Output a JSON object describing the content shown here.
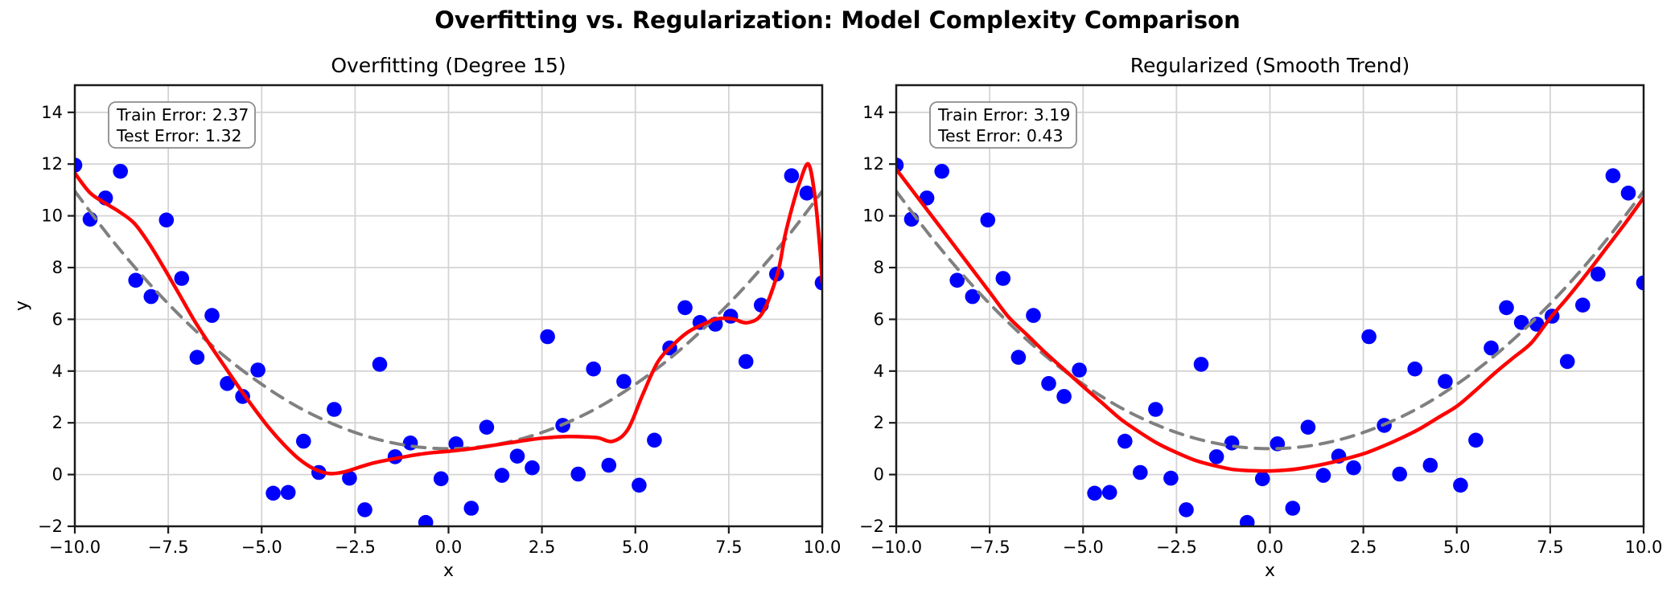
{
  "figure": {
    "suptitle": "Overfitting vs. Regularization: Model Complexity Comparison"
  },
  "colors": {
    "scatter": "#0000ff",
    "fit_line": "#ff0000",
    "true_line": "#808080",
    "grid": "#d4d4d4",
    "spine": "#1a1a1a",
    "tick": "#1a1a1a",
    "text": "#000000",
    "annotation_bg": "#ffffff",
    "annotation_border": "#8c8c8c"
  },
  "chart_data": [
    {
      "type": "scatter",
      "panel": "overfitting",
      "title": "Overfitting (Degree 15)",
      "xlabel": "x",
      "ylabel": "y",
      "xlim": [
        -10,
        10
      ],
      "ylim": [
        -2,
        15.05
      ],
      "grid": true,
      "legend": null,
      "xtick_values": [
        -10.0,
        -7.5,
        -5.0,
        -2.5,
        0.0,
        2.5,
        5.0,
        7.5,
        10.0
      ],
      "xtick_labels": [
        "−10.0",
        "−7.5",
        "−5.0",
        "−2.5",
        "0.0",
        "2.5",
        "5.0",
        "7.5",
        "10.0"
      ],
      "ytick_values": [
        -2,
        0,
        2,
        4,
        6,
        8,
        10,
        12,
        14
      ],
      "ytick_labels": [
        "−2",
        "0",
        "2",
        "4",
        "6",
        "8",
        "10",
        "12",
        "14"
      ],
      "annotation": {
        "line1": "Train Error: 2.37",
        "line2": "Test Error: 1.32"
      },
      "series": [
        {
          "name": "training-data",
          "kind": "scatter",
          "x": [
            -10.0,
            -9.59,
            -9.18,
            -8.78,
            -8.37,
            -7.96,
            -7.55,
            -7.14,
            -6.73,
            -6.33,
            -5.92,
            -5.51,
            -5.1,
            -4.69,
            -4.29,
            -3.88,
            -3.47,
            -3.06,
            -2.65,
            -2.24,
            -1.84,
            -1.43,
            -1.02,
            -0.61,
            -0.2,
            0.2,
            0.61,
            1.02,
            1.43,
            1.84,
            2.24,
            2.65,
            3.06,
            3.47,
            3.88,
            4.29,
            4.69,
            5.1,
            5.51,
            5.92,
            6.33,
            6.73,
            7.14,
            7.55,
            7.96,
            8.37,
            8.78,
            9.18,
            9.59,
            10.0
          ],
          "y": [
            11.96,
            9.87,
            10.69,
            11.72,
            7.51,
            6.88,
            9.84,
            7.58,
            4.53,
            6.15,
            3.52,
            3.02,
            4.04,
            -0.72,
            -0.69,
            1.29,
            0.08,
            2.52,
            -0.14,
            -1.36,
            4.26,
            0.69,
            1.22,
            -1.85,
            -0.16,
            1.19,
            -1.3,
            1.83,
            -0.03,
            0.71,
            0.26,
            5.33,
            1.9,
            0.02,
            4.08,
            0.36,
            3.6,
            -0.41,
            1.33,
            4.89,
            6.45,
            5.88,
            5.81,
            6.12,
            4.37,
            6.55,
            7.75,
            11.55,
            10.88,
            7.41
          ]
        },
        {
          "name": "true-function",
          "kind": "line",
          "style": "dashed",
          "x": [
            -10,
            -9,
            -8,
            -7,
            -6,
            -5,
            -4,
            -3,
            -2,
            -1,
            0,
            1,
            2,
            3,
            4,
            5,
            6,
            7,
            8,
            9,
            10
          ],
          "y": [
            10.95,
            9.06,
            7.37,
            5.88,
            4.58,
            3.49,
            2.59,
            1.9,
            1.4,
            1.1,
            1.0,
            1.1,
            1.4,
            1.9,
            2.59,
            3.49,
            4.58,
            5.88,
            7.37,
            9.06,
            10.95
          ]
        },
        {
          "name": "degree-15-fit",
          "kind": "line",
          "style": "solid",
          "x": [
            -10,
            -9.6,
            -9.2,
            -8.8,
            -8.4,
            -8.0,
            -7.6,
            -7.2,
            -6.8,
            -6.4,
            -6.0,
            -5.6,
            -5.2,
            -4.8,
            -4.4,
            -4.0,
            -3.6,
            -3.2,
            -2.8,
            -2.4,
            -2.0,
            -1.6,
            -1.2,
            -0.8,
            -0.4,
            0.0,
            0.4,
            0.8,
            1.2,
            1.6,
            2.0,
            2.4,
            2.8,
            3.2,
            3.6,
            4.0,
            4.4,
            4.8,
            5.2,
            5.6,
            6.0,
            6.4,
            6.8,
            7.2,
            7.6,
            8.0,
            8.4,
            8.8,
            9.0,
            9.2,
            9.4,
            9.63,
            9.8,
            9.93,
            10.0
          ],
          "y": [
            11.65,
            10.9,
            10.5,
            10.15,
            9.7,
            8.9,
            7.95,
            6.95,
            5.95,
            5.05,
            4.2,
            3.35,
            2.55,
            1.8,
            1.15,
            0.6,
            0.22,
            0.04,
            0.1,
            0.28,
            0.45,
            0.57,
            0.68,
            0.78,
            0.85,
            0.9,
            0.96,
            1.04,
            1.13,
            1.22,
            1.31,
            1.39,
            1.44,
            1.47,
            1.46,
            1.42,
            1.29,
            1.75,
            3.1,
            4.35,
            5.0,
            5.5,
            5.8,
            6.02,
            6.02,
            5.87,
            6.25,
            7.75,
            9.2,
            10.35,
            11.3,
            12.0,
            10.8,
            8.9,
            7.45
          ]
        }
      ]
    },
    {
      "type": "scatter",
      "panel": "regularized",
      "title": "Regularized (Smooth Trend)",
      "xlabel": "x",
      "ylabel": "",
      "xlim": [
        -10,
        10
      ],
      "ylim": [
        -2,
        15.05
      ],
      "grid": true,
      "legend": null,
      "xtick_values": [
        -10.0,
        -7.5,
        -5.0,
        -2.5,
        0.0,
        2.5,
        5.0,
        7.5,
        10.0
      ],
      "xtick_labels": [
        "−10.0",
        "−7.5",
        "−5.0",
        "−2.5",
        "0.0",
        "2.5",
        "5.0",
        "7.5",
        "10.0"
      ],
      "ytick_values": [
        -2,
        0,
        2,
        4,
        6,
        8,
        10,
        12,
        14
      ],
      "ytick_labels": [
        "−2",
        "0",
        "2",
        "4",
        "6",
        "8",
        "10",
        "12",
        "14"
      ],
      "annotation": {
        "line1": "Train Error: 3.19",
        "line2": "Test Error: 0.43"
      },
      "series": [
        {
          "name": "training-data",
          "kind": "scatter",
          "x": [
            -10.0,
            -9.59,
            -9.18,
            -8.78,
            -8.37,
            -7.96,
            -7.55,
            -7.14,
            -6.73,
            -6.33,
            -5.92,
            -5.51,
            -5.1,
            -4.69,
            -4.29,
            -3.88,
            -3.47,
            -3.06,
            -2.65,
            -2.24,
            -1.84,
            -1.43,
            -1.02,
            -0.61,
            -0.2,
            0.2,
            0.61,
            1.02,
            1.43,
            1.84,
            2.24,
            2.65,
            3.06,
            3.47,
            3.88,
            4.29,
            4.69,
            5.1,
            5.51,
            5.92,
            6.33,
            6.73,
            7.14,
            7.55,
            7.96,
            8.37,
            8.78,
            9.18,
            9.59,
            10.0
          ],
          "y": [
            11.96,
            9.87,
            10.69,
            11.72,
            7.51,
            6.88,
            9.84,
            7.58,
            4.53,
            6.15,
            3.52,
            3.02,
            4.04,
            -0.72,
            -0.69,
            1.29,
            0.08,
            2.52,
            -0.14,
            -1.36,
            4.26,
            0.69,
            1.22,
            -1.85,
            -0.16,
            1.19,
            -1.3,
            1.83,
            -0.03,
            0.71,
            0.26,
            5.33,
            1.9,
            0.02,
            4.08,
            0.36,
            3.6,
            -0.41,
            1.33,
            4.89,
            6.45,
            5.88,
            5.81,
            6.12,
            4.37,
            6.55,
            7.75,
            11.55,
            10.88,
            7.41
          ]
        },
        {
          "name": "true-function",
          "kind": "line",
          "style": "dashed",
          "x": [
            -10,
            -9,
            -8,
            -7,
            -6,
            -5,
            -4,
            -3,
            -2,
            -1,
            0,
            1,
            2,
            3,
            4,
            5,
            6,
            7,
            8,
            9,
            10
          ],
          "y": [
            10.95,
            9.06,
            7.37,
            5.88,
            4.58,
            3.49,
            2.59,
            1.9,
            1.4,
            1.1,
            1.0,
            1.1,
            1.4,
            1.9,
            2.59,
            3.49,
            4.58,
            5.88,
            7.37,
            9.06,
            10.95
          ]
        },
        {
          "name": "smooth-fit",
          "kind": "line",
          "style": "solid",
          "x": [
            -10,
            -9.5,
            -9,
            -8.5,
            -8,
            -7.5,
            -7,
            -6.5,
            -6,
            -5.5,
            -5,
            -4.5,
            -4,
            -3.5,
            -3,
            -2.5,
            -2,
            -1.5,
            -1,
            -0.5,
            0,
            0.5,
            1,
            1.5,
            2,
            2.5,
            3,
            3.5,
            4,
            4.5,
            5,
            5.5,
            6,
            6.5,
            7,
            7.5,
            8,
            8.5,
            9,
            9.5,
            10
          ],
          "y": [
            11.8,
            10.85,
            9.9,
            8.95,
            8.0,
            7.05,
            6.1,
            5.4,
            4.7,
            4.05,
            3.4,
            2.78,
            2.15,
            1.65,
            1.2,
            0.85,
            0.55,
            0.35,
            0.2,
            0.15,
            0.14,
            0.18,
            0.28,
            0.42,
            0.6,
            0.8,
            1.08,
            1.4,
            1.76,
            2.2,
            2.64,
            3.25,
            3.9,
            4.5,
            5.1,
            6.05,
            6.9,
            7.8,
            8.75,
            9.7,
            10.7
          ]
        }
      ]
    }
  ]
}
